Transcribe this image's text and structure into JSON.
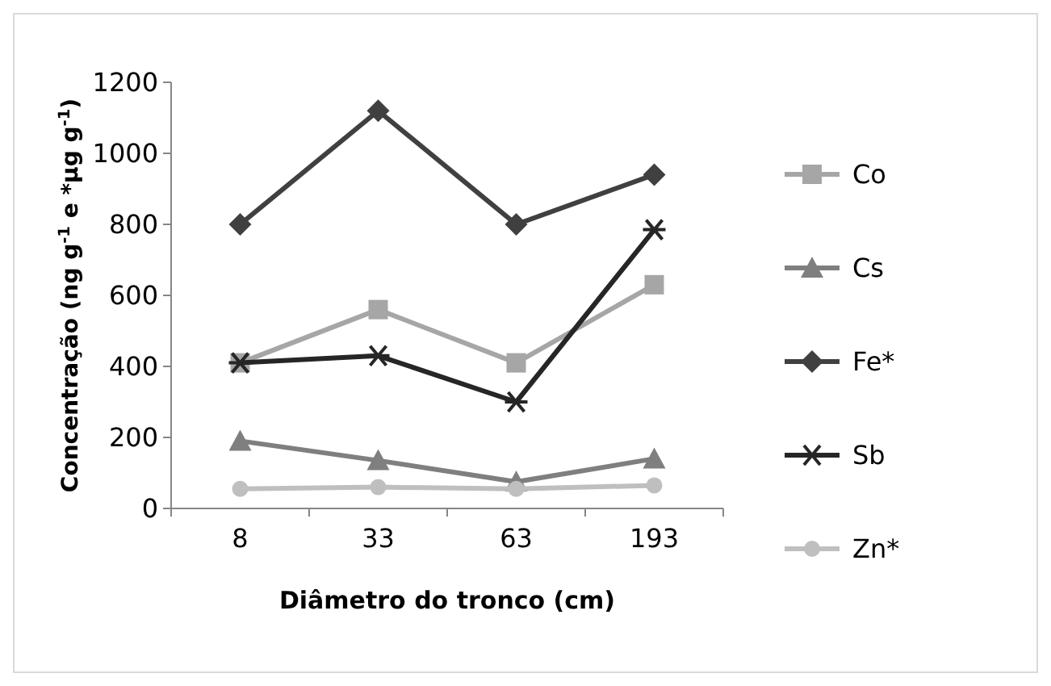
{
  "chart_data": {
    "type": "line",
    "xlabel": "Diâmetro do tronco (cm)",
    "ylabel": "Concentração (ng g$^{-1}$ e *µg g$^{-1}$)",
    "categories": [
      "8",
      "33",
      "63",
      "193"
    ],
    "ylim": [
      0,
      1200
    ],
    "yticks": [
      0,
      200,
      400,
      600,
      800,
      1000,
      1200
    ],
    "grid": false,
    "legend": "right",
    "series": [
      {
        "name": "Co",
        "color": "#a6a6a6",
        "marker": "square",
        "values": [
          410,
          560,
          410,
          630
        ]
      },
      {
        "name": "Cs",
        "color": "#7f7f7f",
        "marker": "triangle",
        "values": [
          190,
          135,
          75,
          140
        ]
      },
      {
        "name": "Fe*",
        "color": "#404040",
        "marker": "diamond",
        "values": [
          800,
          1120,
          800,
          940
        ]
      },
      {
        "name": "Sb",
        "color": "#262626",
        "marker": "cross",
        "values": [
          410,
          430,
          300,
          785
        ]
      },
      {
        "name": "Zn*",
        "color": "#bfbfbf",
        "marker": "circle",
        "values": [
          55,
          60,
          55,
          65
        ]
      }
    ]
  }
}
